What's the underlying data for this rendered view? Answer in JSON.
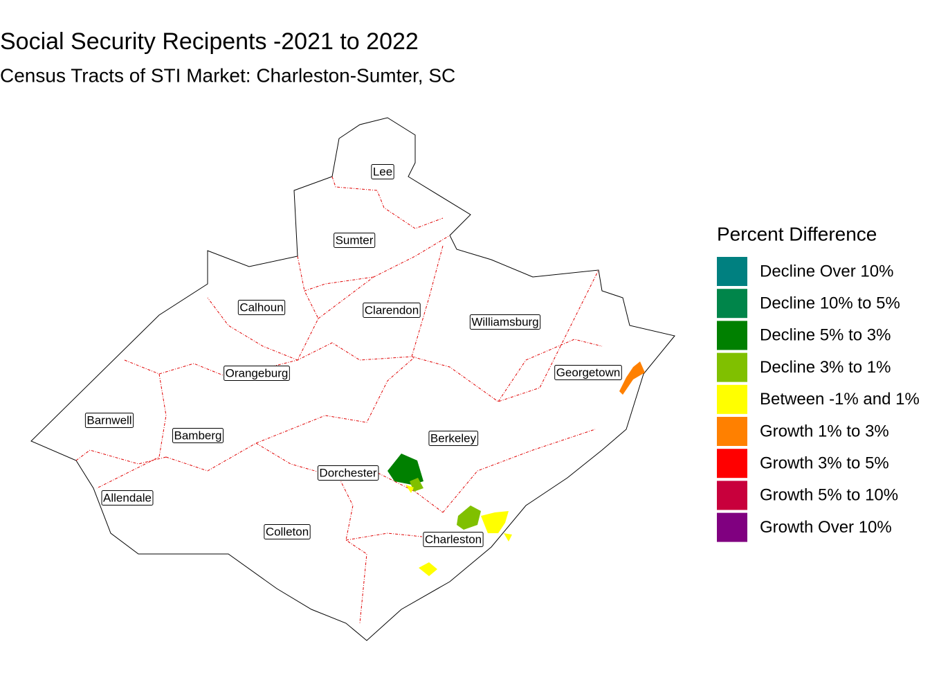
{
  "title": "Social Security Recipents -2021 to 2022",
  "subtitle": "Census Tracts of STI Market: Charleston-Sumter, SC",
  "legend": {
    "title": "Percent Difference",
    "items": [
      {
        "label": "Decline Over 10%",
        "color": "#008080"
      },
      {
        "label": "Decline 10% to 5%",
        "color": "#00854a"
      },
      {
        "label": "Decline 5% to 3%",
        "color": "#008000"
      },
      {
        "label": "Decline 3% to 1%",
        "color": "#80c000"
      },
      {
        "label": "Between -1% and 1%",
        "color": "#ffff00"
      },
      {
        "label": "Growth 1% to 3%",
        "color": "#ff8000"
      },
      {
        "label": "Growth 3% to 5%",
        "color": "#ff0000"
      },
      {
        "label": "Growth 5% to 10%",
        "color": "#c8003c"
      },
      {
        "label": "Growth Over 10%",
        "color": "#800080"
      }
    ]
  },
  "counties": [
    "Lee",
    "Sumter",
    "Calhoun",
    "Clarendon",
    "Williamsburg",
    "Orangeburg",
    "Georgetown",
    "Barnwell",
    "Bamberg",
    "Berkeley",
    "Dorchester",
    "Allendale",
    "Colleton",
    "Charleston"
  ]
}
